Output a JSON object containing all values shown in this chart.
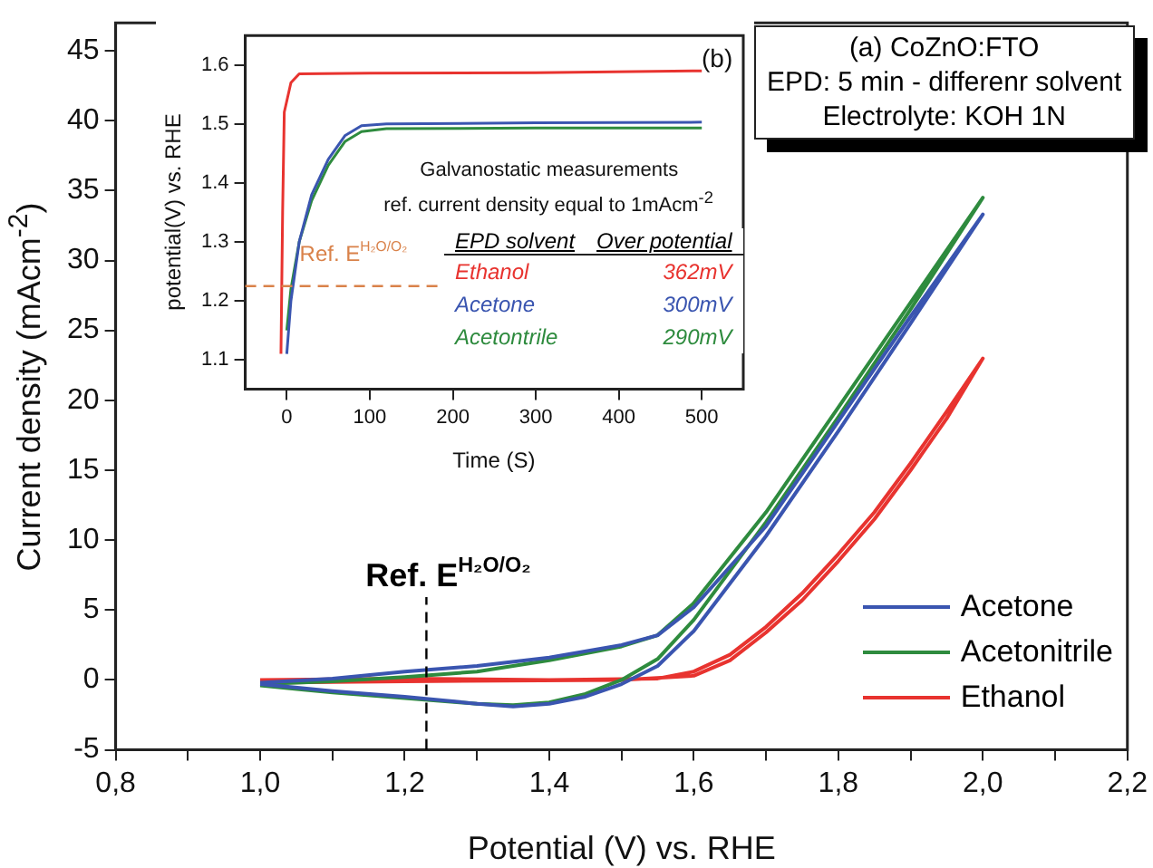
{
  "chart_data": [
    {
      "type": "line",
      "xlabel": "Potential (V) vs. RHE",
      "ylabel": "Current density (mAcm$^{-2}$)",
      "xlim": [
        0.8,
        2.2
      ],
      "xticks": [
        {
          "value": 0.8,
          "label": "0,8"
        },
        {
          "value": 0.9,
          "label": null
        },
        {
          "value": 1.0,
          "label": "1,0"
        },
        {
          "value": 1.1,
          "label": null
        },
        {
          "value": 1.2,
          "label": "1,2"
        },
        {
          "value": 1.3,
          "label": null
        },
        {
          "value": 1.4,
          "label": "1,4"
        },
        {
          "value": 1.5,
          "label": null
        },
        {
          "value": 1.6,
          "label": "1,6"
        },
        {
          "value": 1.7,
          "label": null
        },
        {
          "value": 1.8,
          "label": "1,8"
        },
        {
          "value": 1.9,
          "label": null
        },
        {
          "value": 2.0,
          "label": "2,0"
        },
        {
          "value": 2.1,
          "label": null
        },
        {
          "value": 2.2,
          "label": "2,2"
        }
      ],
      "ylim": [
        -5,
        47
      ],
      "yticks": [
        -5,
        0,
        5,
        10,
        15,
        20,
        25,
        30,
        35,
        40,
        45
      ],
      "grid": false,
      "legend": "bottom right",
      "ref_lines": [
        {
          "axis": "x",
          "value": 1.23,
          "label": "Ref. E$^{H₂O/O₂}$",
          "color": "#000000",
          "line_style": "dashed"
        }
      ],
      "annotations": [
        "(a)    CoZnO:FTO",
        "EPD: 5 min - differenr solvent",
        "Electrolyte: KOH 1N"
      ],
      "series": [
        {
          "name": "Acetone",
          "color": "#3a55b0",
          "x": [
            1.0,
            1.1,
            1.2,
            1.3,
            1.4,
            1.5,
            1.55,
            1.6,
            1.7,
            1.8,
            1.9,
            2.0,
            1.9,
            1.8,
            1.7,
            1.6,
            1.55,
            1.5,
            1.45,
            1.4,
            1.35,
            1.3,
            1.2,
            1.1,
            1.0
          ],
          "values": [
            -0.2,
            0.1,
            0.6,
            1.0,
            1.6,
            2.5,
            3.2,
            5.2,
            11.0,
            18.5,
            26.0,
            33.3,
            25.5,
            17.8,
            10.3,
            3.5,
            1.0,
            -0.3,
            -1.2,
            -1.7,
            -1.9,
            -1.7,
            -1.2,
            -0.8,
            -0.3
          ]
        },
        {
          "name": "Acetonitrile",
          "color": "#2e8b3e",
          "x": [
            1.0,
            1.1,
            1.2,
            1.3,
            1.4,
            1.5,
            1.55,
            1.6,
            1.7,
            1.8,
            1.9,
            2.0,
            1.9,
            1.8,
            1.7,
            1.6,
            1.55,
            1.5,
            1.45,
            1.4,
            1.35,
            1.3,
            1.2,
            1.1,
            1.0
          ],
          "values": [
            -0.3,
            -0.1,
            0.2,
            0.6,
            1.4,
            2.4,
            3.2,
            5.5,
            12.0,
            19.5,
            27.0,
            34.5,
            26.5,
            18.8,
            11.3,
            4.3,
            1.5,
            0,
            -1.0,
            -1.6,
            -1.8,
            -1.7,
            -1.3,
            -0.9,
            -0.4
          ]
        },
        {
          "name": "Ethanol",
          "color": "#e8332f",
          "x": [
            1.0,
            1.2,
            1.4,
            1.55,
            1.6,
            1.65,
            1.7,
            1.75,
            1.8,
            1.85,
            1.9,
            1.95,
            2.0,
            1.95,
            1.9,
            1.85,
            1.8,
            1.75,
            1.7,
            1.65,
            1.6,
            1.5,
            1.2,
            1.0
          ],
          "values": [
            0,
            0.1,
            0,
            0.1,
            0.6,
            1.8,
            3.8,
            6.2,
            9.0,
            12.0,
            15.5,
            19.2,
            23.0,
            18.7,
            15.0,
            11.5,
            8.5,
            5.7,
            3.4,
            1.4,
            0.3,
            0,
            -0.1,
            -0.2
          ]
        }
      ]
    },
    {
      "type": "line",
      "xlabel": "Time (S)",
      "ylabel": "potential(V) vs. RHE",
      "xlim": [
        -50,
        550
      ],
      "xticks": [
        0,
        100,
        200,
        300,
        400,
        500
      ],
      "ylim": [
        1.05,
        1.65
      ],
      "yticks": [
        1.1,
        1.2,
        1.3,
        1.4,
        1.5,
        1.6
      ],
      "grid": false,
      "legend": "bottom",
      "legend_title": "EPD solvent",
      "ref_lines": [
        {
          "axis": "y",
          "value": 1.225,
          "label": "Ref. E$^{H₂O/O₂}$",
          "color": "#d9824a",
          "line_style": "dashed"
        }
      ],
      "annotations": [
        "(b)",
        "Galvanostatic measurements",
        "ref. current density equal to 1mAcm$^{-2}$",
        "Over potential",
        "362mV",
        "300mV",
        "290mV"
      ],
      "series": [
        {
          "name": "Ethanol",
          "color": "#e8332f",
          "x": [
            -7,
            -5,
            -3,
            5,
            15,
            100,
            300,
            500
          ],
          "values": [
            1.11,
            1.35,
            1.52,
            1.57,
            1.585,
            1.586,
            1.587,
            1.59
          ]
        },
        {
          "name": "Acetone",
          "color": "#3a55b0",
          "x": [
            0,
            5,
            15,
            30,
            50,
            70,
            90,
            120,
            300,
            500
          ],
          "values": [
            1.11,
            1.2,
            1.3,
            1.38,
            1.44,
            1.48,
            1.497,
            1.5,
            1.502,
            1.503
          ]
        },
        {
          "name": "Acetontrile",
          "color": "#2e8b3e",
          "x": [
            0,
            5,
            15,
            30,
            50,
            70,
            90,
            120,
            300,
            500
          ],
          "values": [
            1.15,
            1.22,
            1.3,
            1.37,
            1.43,
            1.47,
            1.487,
            1.492,
            1.493,
            1.493
          ]
        }
      ]
    }
  ]
}
